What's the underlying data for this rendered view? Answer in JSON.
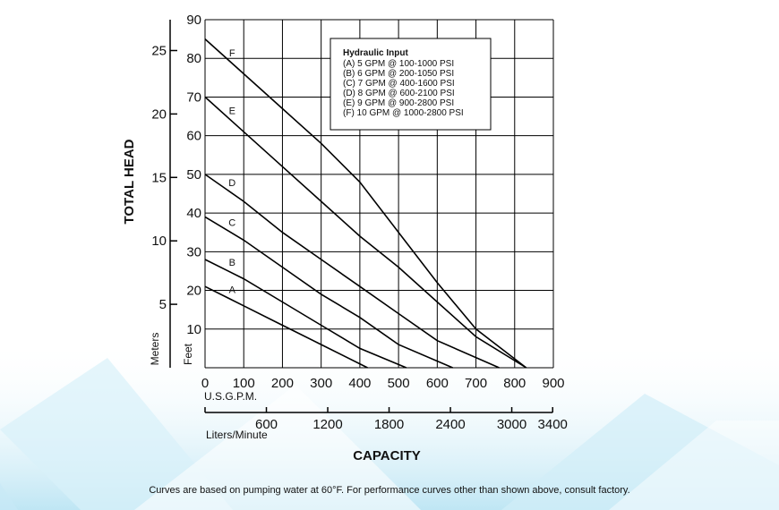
{
  "footnote": "Curves are based on pumping water at 60°F. For performance curves other than shown above, consult factory.",
  "chart_data": {
    "type": "line",
    "ylabel": "TOTAL HEAD",
    "xlabel": "CAPACITY",
    "y_feet": {
      "unit_label": "Feet",
      "ticks": [
        "10",
        "20",
        "30",
        "40",
        "50",
        "60",
        "70",
        "80",
        "90"
      ],
      "ylim": [
        0,
        90
      ]
    },
    "y_meters": {
      "unit_label": "Meters",
      "ticks": [
        "5",
        "10",
        "15",
        "20",
        "25"
      ]
    },
    "x_gpm": {
      "unit_label": "U.S.G.P.M.",
      "ticks": [
        "0",
        "100",
        "200",
        "300",
        "400",
        "500",
        "600",
        "700",
        "800",
        "900"
      ],
      "xlim": [
        0,
        900
      ]
    },
    "x_lpm": {
      "unit_label": "Liters/Minute",
      "ticks": [
        "600",
        "1200",
        "1800",
        "2400",
        "3000",
        "3400"
      ]
    },
    "legend": {
      "title": "Hydraulic Input",
      "items": [
        "(A) 5 GPM @ 100-1000 PSI",
        "(B) 6 GPM @ 200-1050 PSI",
        "(C) 7 GPM @ 400-1600 PSI",
        "(D) 8 GPM @ 600-2100 PSI",
        "(E) 9 GPM @ 900-2800 PSI",
        "(F) 10 GPM @ 1000-2800 PSI"
      ]
    },
    "grid": true,
    "series": [
      {
        "name": "A",
        "color": "#000000",
        "points": [
          [
            0,
            21
          ],
          [
            100,
            16
          ],
          [
            200,
            11
          ],
          [
            300,
            6
          ],
          [
            420,
            0
          ]
        ]
      },
      {
        "name": "B",
        "color": "#000000",
        "points": [
          [
            0,
            28
          ],
          [
            100,
            23
          ],
          [
            200,
            17
          ],
          [
            300,
            11
          ],
          [
            400,
            5
          ],
          [
            520,
            0
          ]
        ]
      },
      {
        "name": "C",
        "color": "#000000",
        "points": [
          [
            0,
            39
          ],
          [
            100,
            33
          ],
          [
            200,
            26
          ],
          [
            300,
            19
          ],
          [
            400,
            13
          ],
          [
            500,
            6
          ],
          [
            640,
            0
          ]
        ]
      },
      {
        "name": "D",
        "color": "#000000",
        "points": [
          [
            0,
            50
          ],
          [
            100,
            43
          ],
          [
            200,
            35
          ],
          [
            300,
            28
          ],
          [
            400,
            21
          ],
          [
            500,
            14
          ],
          [
            600,
            7
          ],
          [
            760,
            0
          ]
        ]
      },
      {
        "name": "E",
        "color": "#000000",
        "points": [
          [
            0,
            70
          ],
          [
            100,
            61
          ],
          [
            200,
            52
          ],
          [
            300,
            43
          ],
          [
            400,
            34
          ],
          [
            500,
            26
          ],
          [
            600,
            17
          ],
          [
            700,
            8
          ],
          [
            830,
            0
          ]
        ]
      },
      {
        "name": "F",
        "color": "#000000",
        "points": [
          [
            0,
            85
          ],
          [
            100,
            76
          ],
          [
            200,
            67
          ],
          [
            300,
            58
          ],
          [
            400,
            48
          ],
          [
            500,
            35
          ],
          [
            600,
            22
          ],
          [
            700,
            10
          ],
          [
            830,
            0
          ]
        ]
      }
    ]
  }
}
